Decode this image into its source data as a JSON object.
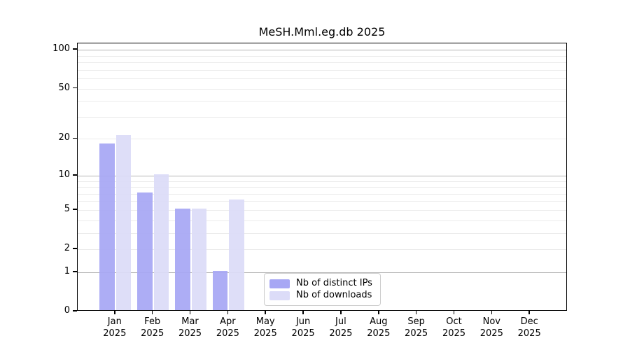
{
  "figure": {
    "background": "#ffffff",
    "text_color": "#000000"
  },
  "chart_data": {
    "type": "bar",
    "title": "MeSH.Mml.eg.db 2025",
    "categories": [
      "Jan 2025",
      "Feb 2025",
      "Mar 2025",
      "Apr 2025",
      "May 2025",
      "Jun 2025",
      "Jul 2025",
      "Aug 2025",
      "Sep 2025",
      "Oct 2025",
      "Nov 2025",
      "Dec 2025"
    ],
    "category_line1": [
      "Jan",
      "Feb",
      "Mar",
      "Apr",
      "May",
      "Jun",
      "Jul",
      "Aug",
      "Sep",
      "Oct",
      "Nov",
      "Dec"
    ],
    "category_line2": [
      "2025",
      "2025",
      "2025",
      "2025",
      "2025",
      "2025",
      "2025",
      "2025",
      "2025",
      "2025",
      "2025",
      "2025"
    ],
    "series": [
      {
        "name": "Nb of distinct IPs",
        "color": "#a7a7f4",
        "values": [
          18,
          7,
          5,
          1,
          0,
          0,
          0,
          0,
          0,
          0,
          0,
          0
        ]
      },
      {
        "name": "Nb of downloads",
        "color": "#dcdcf8",
        "values": [
          21,
          10,
          5,
          6,
          0,
          0,
          0,
          0,
          0,
          0,
          0,
          0
        ]
      }
    ],
    "xlabel": "",
    "ylabel": "",
    "yscale": "log1p",
    "ylim": [
      0,
      112
    ],
    "yticks": [
      0,
      1,
      2,
      5,
      10,
      20,
      50,
      100
    ],
    "grid": {
      "on": true,
      "major_lines": [
        1,
        10,
        100
      ],
      "minor_lines": [
        2,
        3,
        4,
        5,
        6,
        7,
        8,
        9,
        20,
        30,
        40,
        50,
        60,
        70,
        80,
        90
      ],
      "major_color": "#b4b4b4",
      "minor_color": "#ebebeb"
    },
    "legend_position": "inside-bottom-center"
  }
}
